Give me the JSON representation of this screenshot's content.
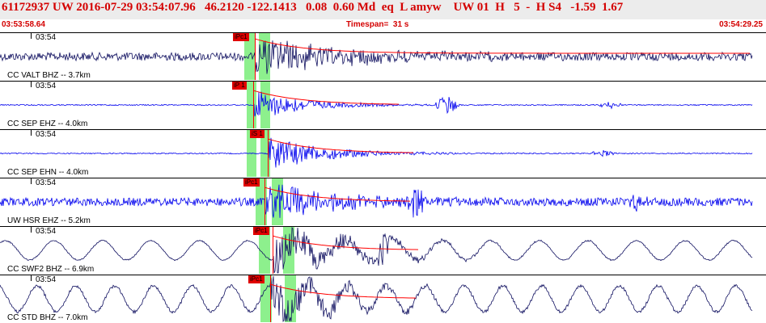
{
  "header": {
    "title": "61172937 UW 2016-07-29 03:54:07.96   46.2120 -122.1413   0.08  0.60 Md  eq  L amyw    UW 01  H   5  -  H S4   -1.59  1.67",
    "start_time": "03:53:58.64",
    "timespan": "Timespan=  31 s",
    "end_time": "03:54:29.25"
  },
  "colors": {
    "header_text": "#d40000",
    "pick": "#e00000",
    "window": "#8df08d"
  },
  "panels": [
    {
      "tick_label": "03:54",
      "channel": "CC VALT BHZ -- 3.7km",
      "pick_label": "iPc1",
      "color": "#101060"
    },
    {
      "tick_label": "03:54",
      "channel": "CC SEP EHZ -- 4.0km",
      "pick_label": "iP 1",
      "color": "#0000ee"
    },
    {
      "tick_label": "03:54",
      "channel": "CC SEP EHN -- 4.0km",
      "pick_label": "iS 1",
      "color": "#0000ee"
    },
    {
      "tick_label": "03:54",
      "channel": "UW HSR EHZ -- 5.2km",
      "pick_label": "iPc1",
      "color": "#0000ee"
    },
    {
      "tick_label": "03:54",
      "channel": "CC SWF2 BHZ -- 6.9km",
      "pick_label": "iPc1",
      "color": "#101060"
    },
    {
      "tick_label": "03:54",
      "channel": "CC STD BHZ -- 7.0km",
      "pick_label": "iPc1",
      "color": "#101060"
    }
  ]
}
